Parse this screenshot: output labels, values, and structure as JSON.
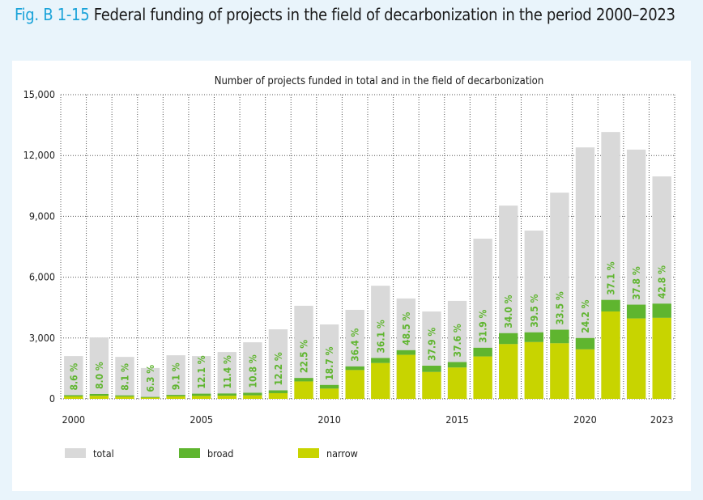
{
  "figure": {
    "label": "Fig. B 1-15",
    "title": "Federal funding of projects in the field of decarbonization in the period 2000–2023"
  },
  "colors": {
    "total": "#d9d9d9",
    "broad": "#5fb52f",
    "narrow": "#c8d400",
    "label_text": "#5fb52f",
    "figure_label": "#1aa3d9",
    "page_background": "#e9f4fb"
  },
  "chart_data": {
    "type": "bar",
    "title": "Number of projects funded in total and in the field of decarbonization",
    "xlabel": "",
    "ylabel": "",
    "ylim": [
      0,
      15000
    ],
    "yticks": [
      0,
      3000,
      6000,
      9000,
      12000,
      15000
    ],
    "ytick_labels": [
      "0",
      "3,000",
      "6,000",
      "9,000",
      "12,000",
      "15,000"
    ],
    "grid": true,
    "legend_position": "bottom-left",
    "categories": [
      "2000",
      "2001",
      "2002",
      "2003",
      "2004",
      "2005",
      "2006",
      "2007",
      "2008",
      "2009",
      "2010",
      "2011",
      "2012",
      "2013",
      "2014",
      "2015",
      "2016",
      "2017",
      "2018",
      "2019",
      "2020",
      "2021",
      "2022",
      "2023"
    ],
    "xtick_labels": [
      "2000",
      "",
      "",
      "",
      "",
      "2005",
      "",
      "",
      "",
      "",
      "2010",
      "",
      "",
      "",
      "",
      "2015",
      "",
      "",
      "",
      "",
      "2020",
      "",
      "",
      "2023"
    ],
    "series": [
      {
        "name": "total",
        "values": [
          2110,
          3030,
          2070,
          1520,
          2150,
          2110,
          2310,
          2790,
          3430,
          4590,
          3670,
          4390,
          5580,
          4950,
          4310,
          4830,
          7900,
          9530,
          8300,
          10170,
          12400,
          13160,
          12290,
          10970
        ]
      },
      {
        "name": "broad",
        "values": [
          60,
          90,
          60,
          35,
          70,
          110,
          110,
          130,
          140,
          170,
          180,
          180,
          250,
          230,
          310,
          270,
          430,
          540,
          480,
          670,
          560,
          570,
          680,
          700
        ]
      },
      {
        "name": "narrow",
        "values": [
          120,
          150,
          110,
          60,
          125,
          145,
          155,
          170,
          280,
          860,
          505,
          1420,
          1765,
          2170,
          1325,
          1545,
          2090,
          2700,
          2800,
          2740,
          2440,
          4310,
          3965,
          3995
        ]
      }
    ],
    "stacking": "narrow and broad stacked from zero; total drawn as full background bar",
    "data_labels": [
      "8.6 %",
      "8.0 %",
      "8.1 %",
      "6.3 %",
      "9.1 %",
      "12.1 %",
      "11.4 %",
      "10.8 %",
      "12.2 %",
      "22.5 %",
      "18.7 %",
      "36.4 %",
      "36.1 %",
      "48.5 %",
      "37.9 %",
      "37.6 %",
      "31.9 %",
      "34.0 %",
      "39.5 %",
      "33.5 %",
      "24.2 %",
      "37.1 %",
      "37.8 %",
      "42.8 %"
    ]
  }
}
